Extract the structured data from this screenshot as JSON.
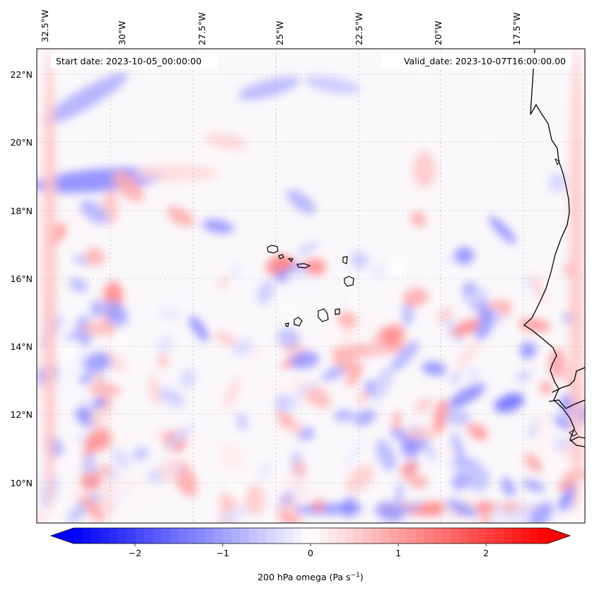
{
  "map": {
    "start_label": "Start date: 2023-10-05_00:00:00",
    "valid_label": "Valid_date: 2023-10-07T16:00:00.00",
    "lon_ticks": [
      "32.5°W",
      "30°W",
      "27.5°W",
      "25°W",
      "22.5°W",
      "20°W",
      "17.5°W"
    ],
    "lat_ticks": [
      "22°N",
      "20°N",
      "18°N",
      "16°N",
      "14°N",
      "12°N",
      "10°N"
    ],
    "lon_range_deg": [
      -32.8,
      -16.0
    ],
    "lat_range_deg": [
      8.9,
      22.8
    ],
    "field": "200 hPa omega",
    "colormap": [
      "#0000ff",
      "#ffffff",
      "#ff0000"
    ],
    "coastline_color": "#000000",
    "gridlines": true
  },
  "colorbar": {
    "range": [
      -2.7,
      2.7
    ],
    "ticks": [
      "−2",
      "−1",
      "0",
      "1",
      "2"
    ],
    "tick_values": [
      -2,
      -1,
      0,
      1,
      2
    ],
    "label_prefix": "200 hPa omega (Pa s",
    "label_exp": "−1",
    "label_suffix": ")",
    "extend": "both"
  }
}
